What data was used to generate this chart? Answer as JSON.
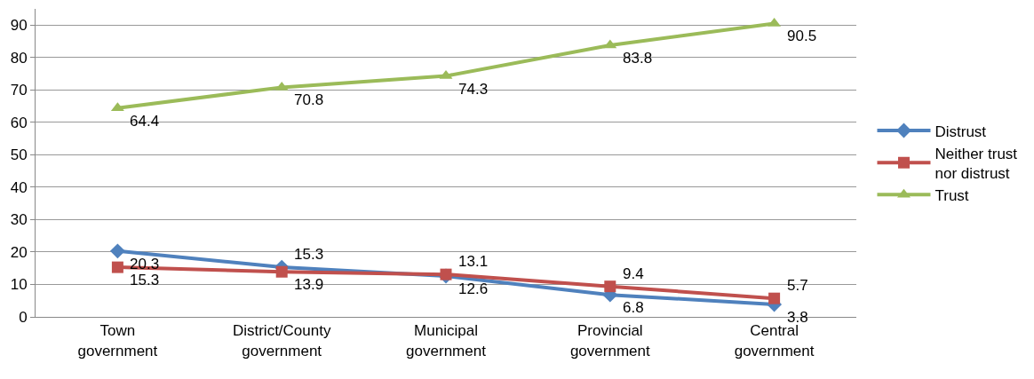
{
  "chart_data": {
    "type": "line",
    "categories": [
      "Town government",
      "District/County government",
      "Municipal government",
      "Provincial government",
      "Central government"
    ],
    "series": [
      {
        "name": "Distrust",
        "color": "#4f81bd",
        "marker": "diamond",
        "values": [
          20.3,
          15.3,
          12.6,
          6.8,
          3.8
        ]
      },
      {
        "name": "Neither trust nor distrust",
        "color": "#c0504d",
        "marker": "square",
        "values": [
          15.3,
          13.9,
          13.1,
          9.4,
          5.7
        ]
      },
      {
        "name": "Trust",
        "color": "#9bbb59",
        "marker": "triangle",
        "values": [
          64.4,
          70.8,
          74.3,
          83.8,
          90.5
        ]
      }
    ],
    "ylim": [
      0,
      95
    ],
    "yticks": [
      0,
      10,
      20,
      30,
      40,
      50,
      60,
      70,
      80,
      90
    ],
    "grid": "y",
    "legend": "right",
    "data_labels": true,
    "line_style": "solid"
  }
}
